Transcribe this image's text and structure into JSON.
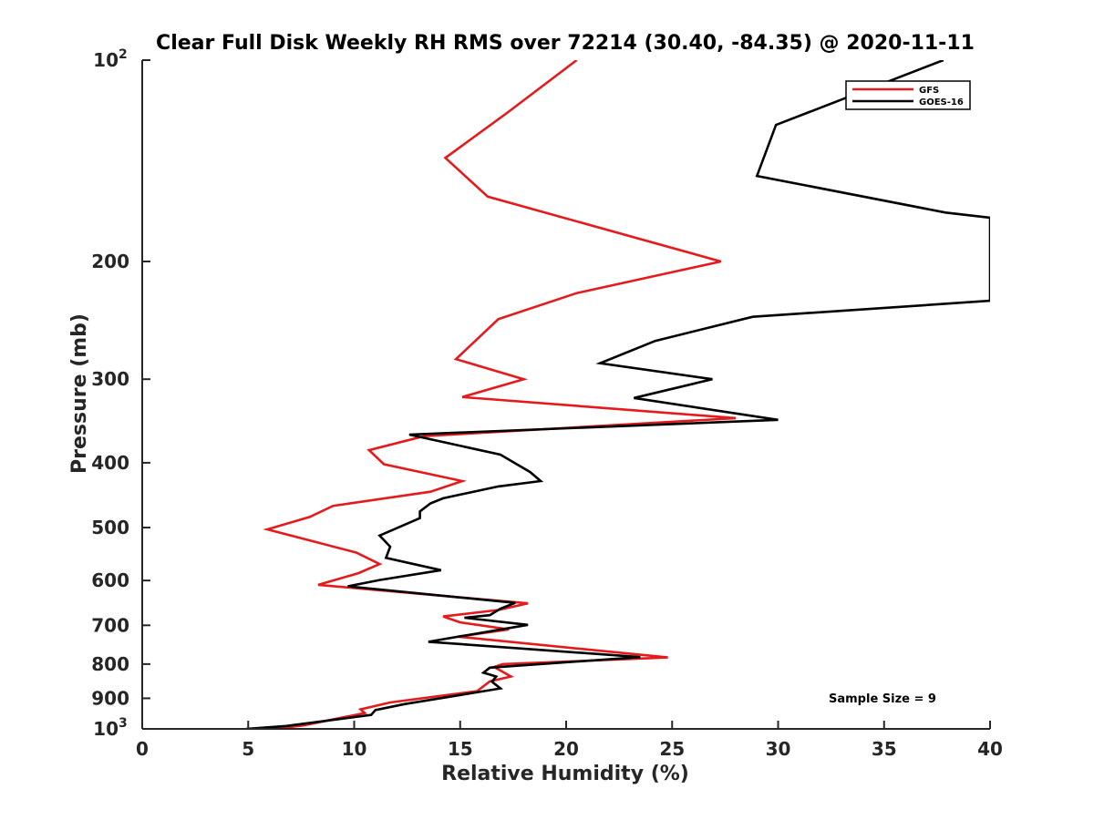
{
  "chart_data": {
    "type": "line",
    "title": "Clear Full Disk Weekly RH RMS over 72214 (30.40, -84.35) @ 2020-11-11",
    "xlabel": "Relative Humidity (%)",
    "ylabel": "Pressure (mb)",
    "xlim": [
      0,
      40
    ],
    "ylim": [
      100,
      1000
    ],
    "yscale": "log",
    "y_reversed": true,
    "x_ticks": [
      "0",
      "5",
      "10",
      "15",
      "20",
      "25",
      "30",
      "35",
      "40"
    ],
    "y_ticks": [
      {
        "value": 100,
        "label": "10",
        "sup": "2"
      },
      {
        "value": 200,
        "label": "200"
      },
      {
        "value": 300,
        "label": "300"
      },
      {
        "value": 400,
        "label": "400"
      },
      {
        "value": 500,
        "label": "500"
      },
      {
        "value": 600,
        "label": "600"
      },
      {
        "value": 700,
        "label": "700"
      },
      {
        "value": 800,
        "label": "800"
      },
      {
        "value": 900,
        "label": "900"
      },
      {
        "value": 1000,
        "label": "10",
        "sup": "3"
      }
    ],
    "legend_position": "top-right",
    "annotation": "Sample Size = 9",
    "series": [
      {
        "name": "GFS",
        "color": "#e41a1c",
        "points": [
          [
            20.5,
            100
          ],
          [
            17.2,
            120
          ],
          [
            14.3,
            140
          ],
          [
            16.3,
            160
          ],
          [
            27.3,
            200
          ],
          [
            20.5,
            223
          ],
          [
            16.8,
            244
          ],
          [
            14.8,
            280
          ],
          [
            18.0,
            300
          ],
          [
            15.1,
            319
          ],
          [
            28.0,
            343
          ],
          [
            13.3,
            365
          ],
          [
            10.7,
            383
          ],
          [
            11.4,
            402
          ],
          [
            15.1,
            426
          ],
          [
            13.6,
            442
          ],
          [
            9.0,
            464
          ],
          [
            7.9,
            482
          ],
          [
            5.9,
            503
          ],
          [
            10.1,
            545
          ],
          [
            11.2,
            567
          ],
          [
            10.2,
            585
          ],
          [
            8.3,
            609
          ],
          [
            18.2,
            649
          ],
          [
            16.8,
            664
          ],
          [
            14.2,
            679
          ],
          [
            15.0,
            693
          ],
          [
            17.3,
            710
          ],
          [
            14.9,
            728
          ],
          [
            24.8,
            782
          ],
          [
            17.0,
            800
          ],
          [
            16.6,
            808
          ],
          [
            17.4,
            835
          ],
          [
            16.4,
            849
          ],
          [
            15.8,
            878
          ],
          [
            11.7,
            913
          ],
          [
            10.3,
            935
          ],
          [
            10.5,
            947
          ],
          [
            7.6,
            988
          ],
          [
            6.2,
            1000
          ]
        ]
      },
      {
        "name": "GOES-16",
        "color": "#000000",
        "points": [
          [
            37.8,
            100
          ],
          [
            29.9,
            125
          ],
          [
            29.0,
            149
          ],
          [
            37.9,
            169
          ],
          [
            40.0,
            172
          ],
          [
            40.0,
            229
          ],
          [
            28.8,
            242
          ],
          [
            24.2,
            263
          ],
          [
            21.6,
            284
          ],
          [
            26.9,
            300
          ],
          [
            23.2,
            320
          ],
          [
            30.0,
            345
          ],
          [
            12.6,
            363
          ],
          [
            16.9,
            389
          ],
          [
            18.3,
            413
          ],
          [
            18.8,
            426
          ],
          [
            16.8,
            434
          ],
          [
            14.2,
            452
          ],
          [
            13.6,
            460
          ],
          [
            13.1,
            473
          ],
          [
            13.1,
            484
          ],
          [
            11.2,
            514
          ],
          [
            11.7,
            534
          ],
          [
            11.5,
            555
          ],
          [
            14.1,
            579
          ],
          [
            11.2,
            599
          ],
          [
            9.7,
            612
          ],
          [
            17.6,
            648
          ],
          [
            16.9,
            661
          ],
          [
            16.4,
            676
          ],
          [
            15.2,
            682
          ],
          [
            18.2,
            699
          ],
          [
            13.5,
            741
          ],
          [
            23.5,
            781
          ],
          [
            16.4,
            810
          ],
          [
            16.1,
            824
          ],
          [
            16.7,
            835
          ],
          [
            16.5,
            850
          ],
          [
            16.9,
            870
          ],
          [
            12.4,
            918
          ],
          [
            11.0,
            937
          ],
          [
            10.8,
            953
          ],
          [
            6.8,
            990
          ],
          [
            4.9,
            1000
          ]
        ]
      }
    ]
  }
}
